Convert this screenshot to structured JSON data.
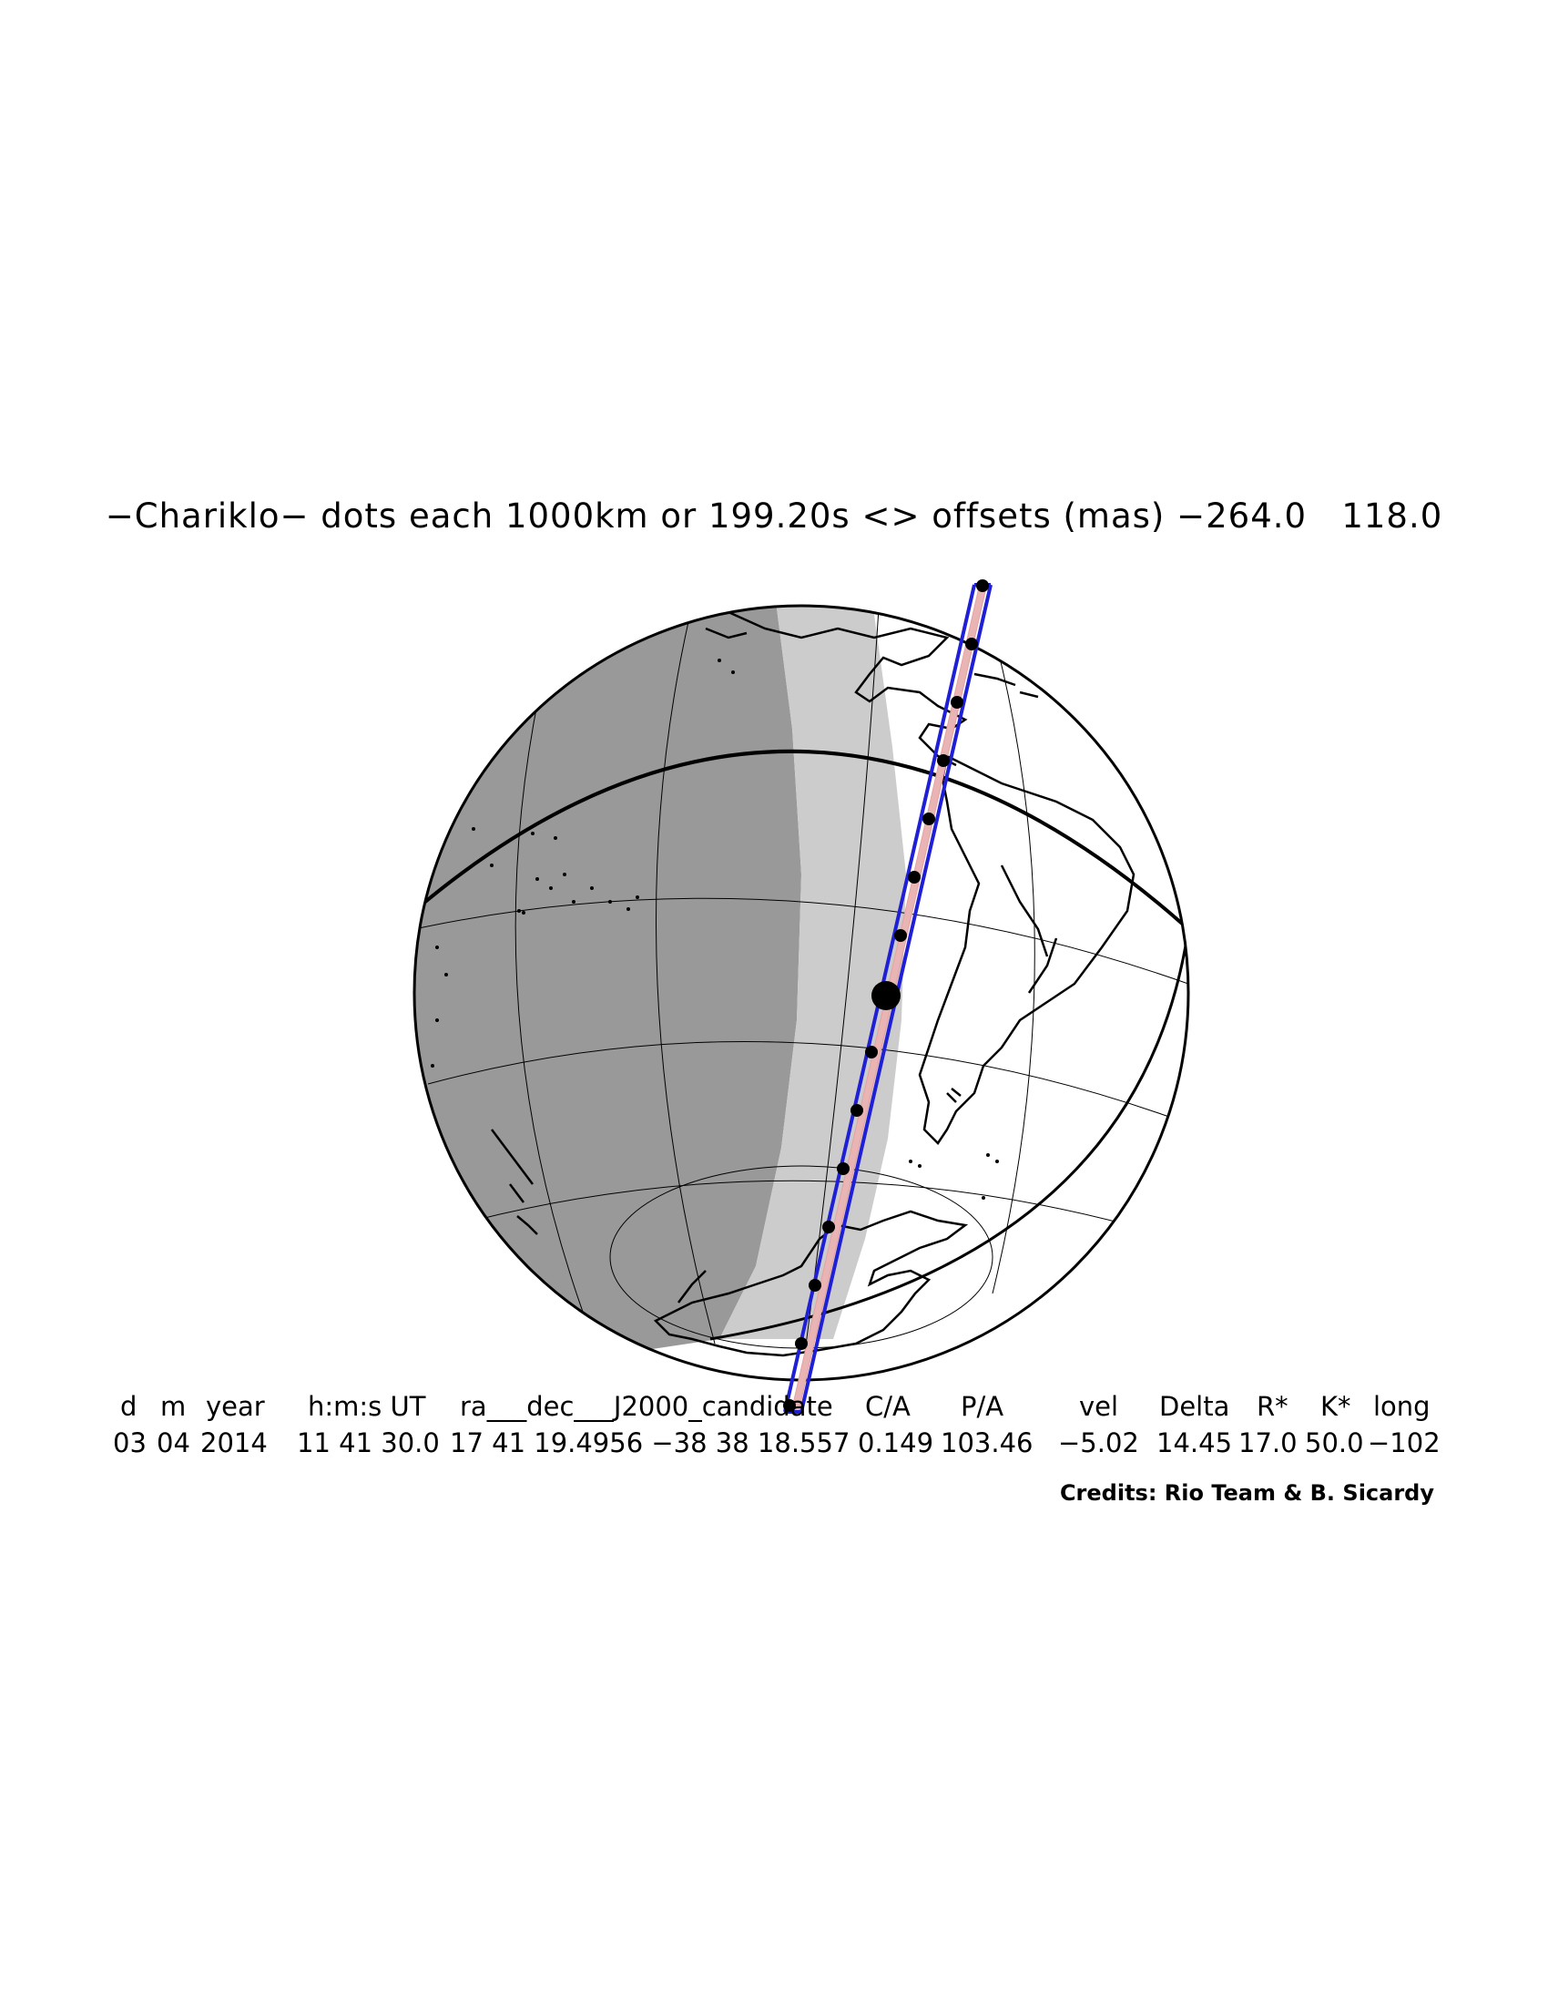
{
  "title": "−Chariklo− dots each 1000km or 199.20s <> offsets (mas) −264.0   118.0",
  "table": {
    "headers": [
      "d",
      "m",
      "year",
      "h:m:s UT",
      "ra___dec___J2000_candidate",
      "C/A",
      "P/A",
      "vel",
      "Delta",
      "R*",
      "K*",
      "long"
    ],
    "values": [
      "03",
      "04",
      "2014",
      "11 41 30.0",
      "17 41 19.4956 −38 38 18.557",
      "0.149",
      "103.46",
      "−5.02",
      "14.45",
      "17.0",
      "50.0",
      "−102"
    ]
  },
  "credits": "Credits: Rio Team & B. Sicardy",
  "map_data": {
    "projection": "orthographic",
    "subject": "Chariklo occultation shadow path",
    "dot_spacing_km": 1000,
    "dot_spacing_s": 199.2,
    "offsets_mas": [
      -264.0,
      118.0
    ],
    "colors": {
      "night": "#999999",
      "twilight": "#cccccc",
      "day": "#ffffff",
      "path": "#1f1fd6",
      "centerline": "#e8a0a0",
      "coast": "#000000"
    }
  }
}
